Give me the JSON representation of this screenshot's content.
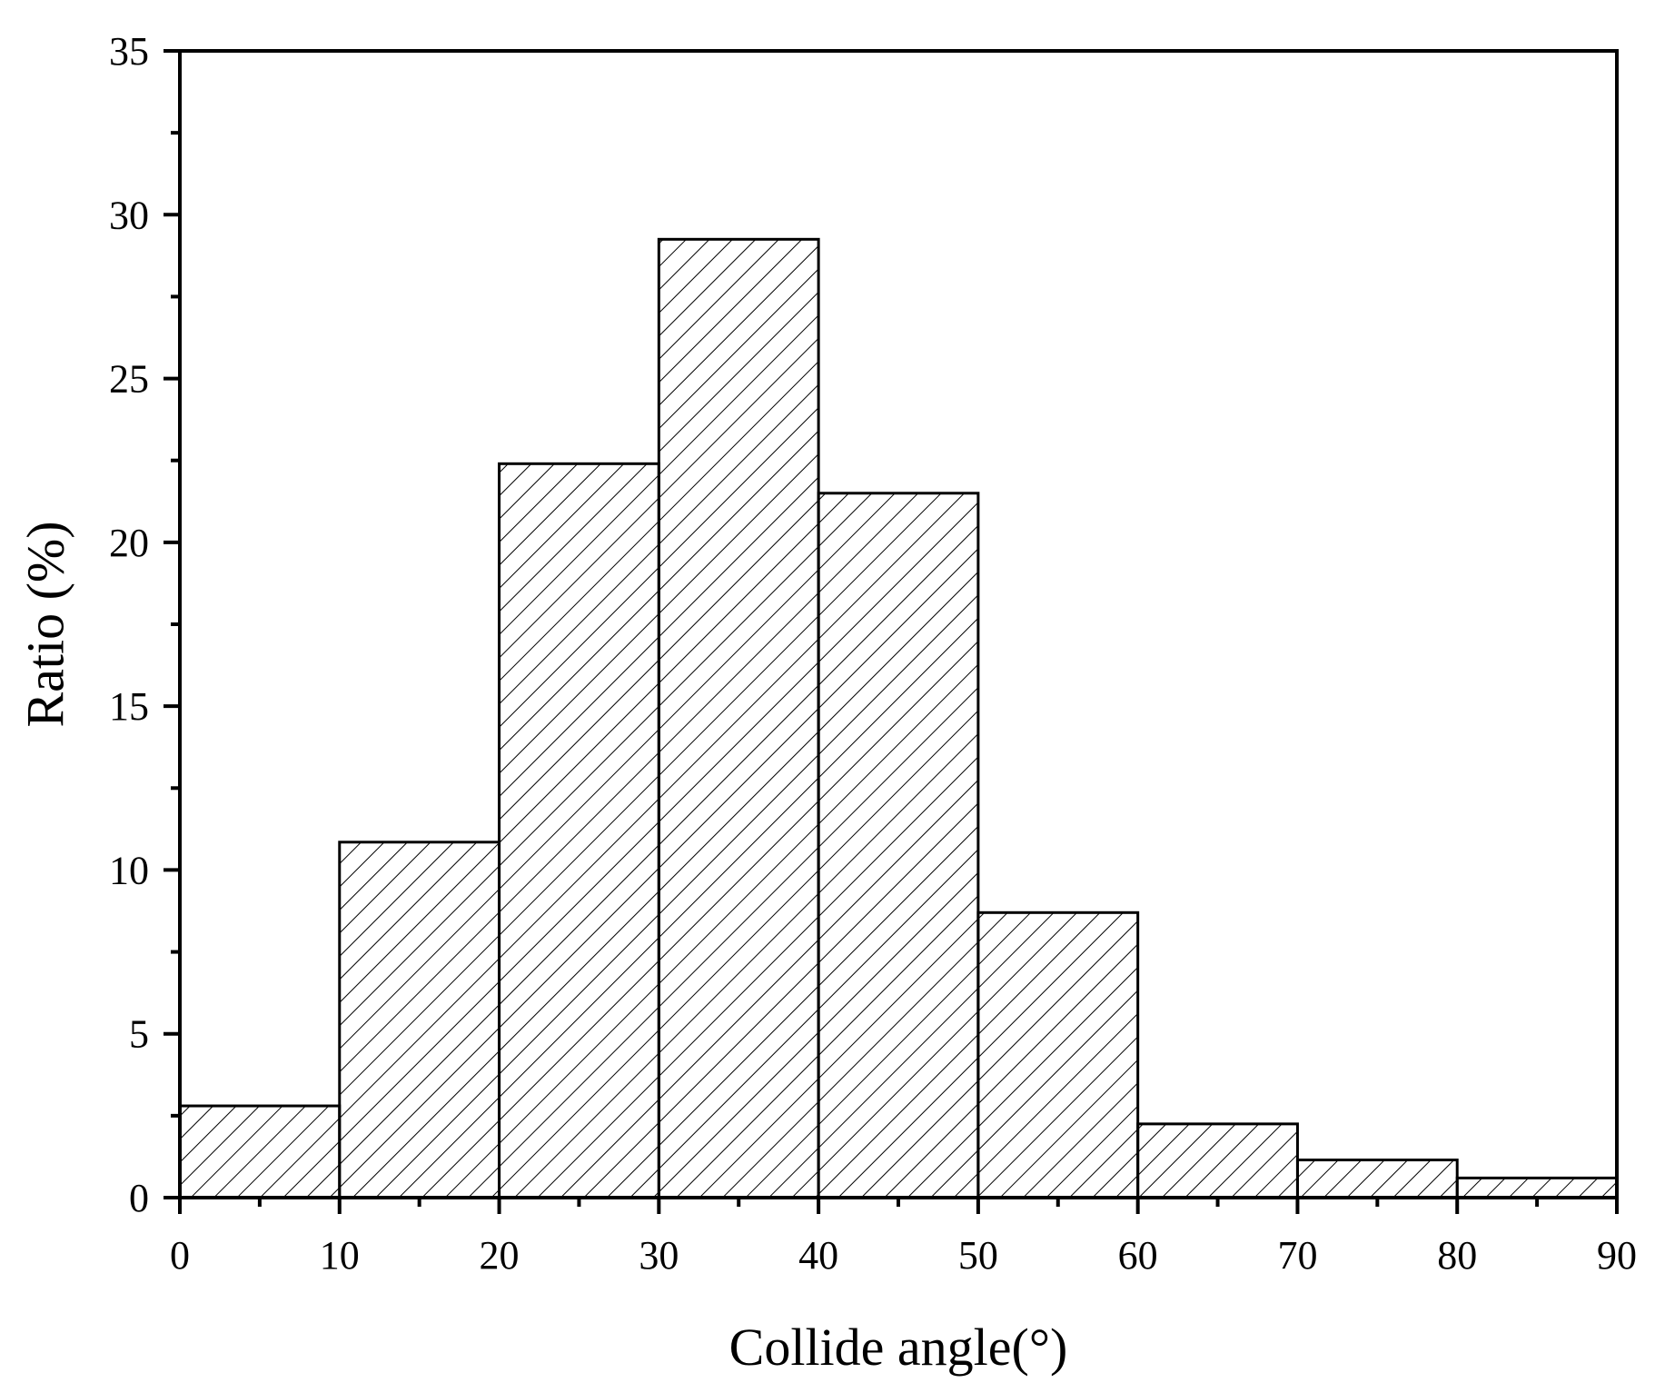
{
  "chart_data": {
    "type": "bar",
    "title": "",
    "xlabel": "Collide angle(°)",
    "ylabel": "Ratio (%)",
    "bins": [
      {
        "start": 0,
        "end": 10,
        "value": 2.8
      },
      {
        "start": 10,
        "end": 20,
        "value": 10.85
      },
      {
        "start": 20,
        "end": 30,
        "value": 22.4
      },
      {
        "start": 30,
        "end": 40,
        "value": 29.25
      },
      {
        "start": 40,
        "end": 50,
        "value": 21.5
      },
      {
        "start": 50,
        "end": 60,
        "value": 8.7
      },
      {
        "start": 60,
        "end": 70,
        "value": 2.25
      },
      {
        "start": 70,
        "end": 80,
        "value": 1.15
      },
      {
        "start": 80,
        "end": 90,
        "value": 0.6
      }
    ],
    "xlim": [
      0,
      90
    ],
    "ylim": [
      0,
      35
    ],
    "x_ticks": [
      "0",
      "10",
      "20",
      "30",
      "40",
      "50",
      "60",
      "70",
      "80",
      "90"
    ],
    "y_ticks": [
      "0",
      "5",
      "10",
      "15",
      "20",
      "25",
      "30",
      "35"
    ],
    "x_minor_step": 5,
    "y_minor_step": 2.5,
    "bar_fill": "hatched",
    "colors": {
      "stroke": "#000000",
      "hatch": "#000000",
      "background": "#ffffff"
    },
    "grid": false,
    "legend": false
  }
}
